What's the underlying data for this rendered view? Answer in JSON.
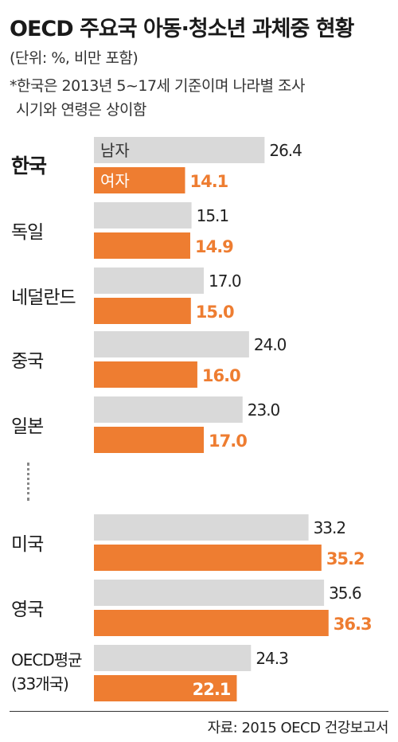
{
  "title": "OECD 주요국 아동·청소년 과체중 현황",
  "unit_note": "(단위: %, 비만 포함)",
  "footnote": [
    "*한국은 2013년 5~17세 기준이며 나라별 조사",
    "시기와 연령은 상이함"
  ],
  "source": "자료: 2015 OECD 건강보고서",
  "colors": {
    "male": "#d9d9d9",
    "female": "#ee7d31",
    "female_text": "#ee7d31",
    "label_text": "#ffffff"
  },
  "chart_data": {
    "type": "bar",
    "orientation": "horizontal",
    "categories": [
      [
        "한국"
      ],
      [
        "독일"
      ],
      [
        "네덜란드"
      ],
      [
        "중국"
      ],
      [
        "일본"
      ],
      [
        "미국"
      ],
      [
        "영국"
      ],
      [
        "OECD평균",
        "(33개국)"
      ]
    ],
    "series": [
      {
        "name": "남자",
        "values": [
          26.4,
          15.1,
          17.0,
          24.0,
          23.0,
          33.2,
          35.6,
          24.3
        ]
      },
      {
        "name": "여자",
        "values": [
          14.1,
          14.9,
          15.0,
          16.0,
          17.0,
          35.2,
          36.3,
          22.1
        ]
      }
    ],
    "value_labels": {
      "남자": [
        "26.4",
        "15.1",
        "17.0",
        "24.0",
        "23.0",
        "33.2",
        "35.6",
        "24.3"
      ],
      "여자": [
        "14.1",
        "14.9",
        "15.0",
        "16.0",
        "17.0",
        "35.2",
        "36.3",
        "22.1"
      ]
    },
    "gap_marker_after_index": 4
  }
}
